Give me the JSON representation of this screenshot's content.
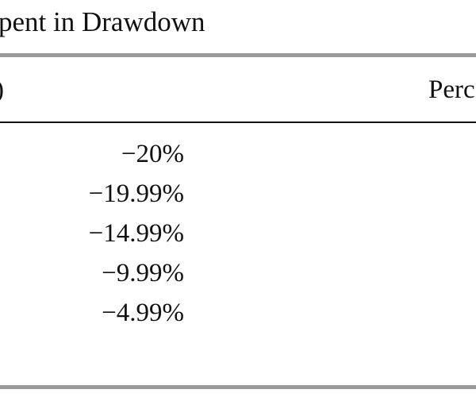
{
  "title": "pent in Drawdown",
  "table": {
    "header": [
      ")",
      "Perc"
    ],
    "rows": [
      [
        "−20%"
      ],
      [
        "−19.99%"
      ],
      [
        "−14.99%"
      ],
      [
        "−9.99%"
      ],
      [
        "−4.99%"
      ]
    ]
  }
}
